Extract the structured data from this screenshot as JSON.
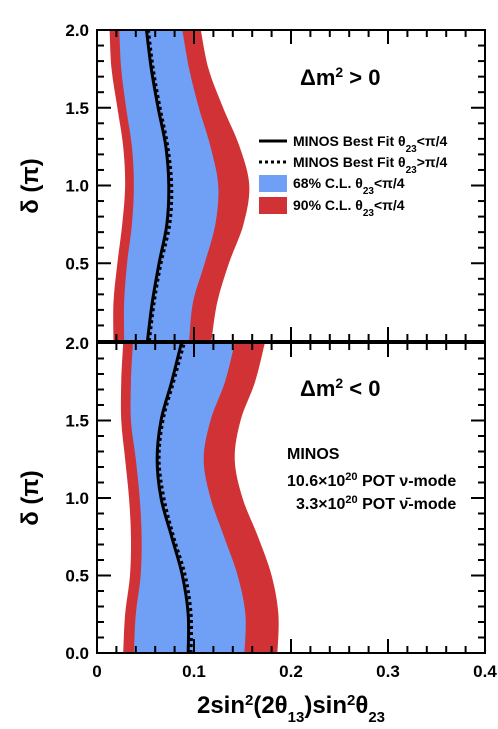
{
  "chart_data": [
    {
      "type": "area",
      "panel": "top",
      "annotation": "Δm² > 0",
      "annotation_parts": {
        "base": "Δm",
        "sup": "2",
        "rest": " > 0"
      },
      "xlabel": "2sin²(2θ13)sin²θ23",
      "ylabel": "δ (π)",
      "xlim": [
        0,
        0.4
      ],
      "ylim": [
        0,
        2.0
      ],
      "x_ticks": [
        "0",
        "0.1",
        "0.2",
        "0.3",
        "0.4"
      ],
      "y_ticks": [
        "0.5",
        "1.0",
        "1.5",
        "2.0"
      ],
      "legend_position": "right-middle",
      "legend": [
        {
          "label": "MINOS Best Fit θ23<π/4",
          "base": "MINOS Best Fit θ",
          "sub": "23",
          "rest": "<π/4",
          "style": "solid-line"
        },
        {
          "label": "MINOS Best Fit θ23>π/4",
          "base": "MINOS Best Fit θ",
          "sub": "23",
          "rest": ">π/4",
          "style": "dotted-line"
        },
        {
          "label": "68% C.L. θ23<π/4",
          "base": "68% C.L. θ",
          "sub": "23",
          "rest": "<π/4",
          "style": "fill-blue"
        },
        {
          "label": "90% C.L. θ23<π/4",
          "base": "90% C.L. θ",
          "sub": "23",
          "rest": "<π/4",
          "style": "fill-red"
        }
      ],
      "colors": {
        "cl90": "#d03236",
        "cl68": "#6fa0f5",
        "line": "#000000"
      },
      "delta": [
        0.0,
        0.25,
        0.5,
        0.75,
        1.0,
        1.25,
        1.5,
        1.75,
        2.0
      ],
      "series": [
        {
          "name": "90% C.L. θ23<π/4",
          "kind": "band",
          "x_low": [
            0.017,
            0.017,
            0.021,
            0.026,
            0.029,
            0.027,
            0.021,
            0.015,
            0.013
          ],
          "x_high": [
            0.118,
            0.124,
            0.136,
            0.151,
            0.157,
            0.147,
            0.13,
            0.115,
            0.107
          ]
        },
        {
          "name": "68% C.L. θ23<π/4",
          "kind": "band",
          "x_low": [
            0.028,
            0.028,
            0.031,
            0.036,
            0.038,
            0.036,
            0.03,
            0.025,
            0.023
          ],
          "x_high": [
            0.095,
            0.099,
            0.111,
            0.122,
            0.125,
            0.117,
            0.105,
            0.095,
            0.088
          ]
        },
        {
          "name": "MINOS Best Fit θ23<π/4",
          "kind": "line",
          "x": [
            0.052,
            0.057,
            0.064,
            0.072,
            0.074,
            0.071,
            0.063,
            0.056,
            0.051
          ]
        },
        {
          "name": "MINOS Best Fit θ23>π/4",
          "kind": "dotted",
          "x": [
            0.054,
            0.059,
            0.066,
            0.075,
            0.077,
            0.073,
            0.065,
            0.058,
            0.053
          ]
        }
      ]
    },
    {
      "type": "area",
      "panel": "bottom",
      "annotation": "Δm² < 0",
      "annotation_parts": {
        "base": "Δm",
        "sup": "2",
        "rest": " < 0"
      },
      "xlabel": "2sin²(2θ13)sin²θ23",
      "xlabel_parts": {
        "a": "2sin",
        "a_sup": "2",
        "b": "(2θ",
        "b_sub": "13",
        "c": ")sin",
        "c_sup": "2",
        "d": "θ",
        "d_sub": "23"
      },
      "ylabel": "δ (π)",
      "xlim": [
        0,
        0.4
      ],
      "ylim": [
        0,
        2.0
      ],
      "x_ticks": [
        "0",
        "0.1",
        "0.2",
        "0.3",
        "0.4"
      ],
      "y_ticks": [
        "0.0",
        "0.5",
        "1.0",
        "1.5",
        "2.0"
      ],
      "text_block": [
        {
          "label": "MINOS",
          "base": "MINOS"
        },
        {
          "label": "10.6×10^20 POT ν-mode",
          "base": "10.6×10",
          "sup": "20",
          "rest": " POT ν-mode"
        },
        {
          "label": "3.3×10^20 POT ν̄-mode",
          "base": "3.3×10",
          "sup": "20",
          "rest": " POT ν̄-mode"
        }
      ],
      "colors": {
        "cl90": "#d03236",
        "cl68": "#6fa0f5",
        "line": "#000000"
      },
      "delta": [
        0.0,
        0.25,
        0.5,
        0.75,
        1.0,
        1.25,
        1.5,
        1.75,
        2.0
      ],
      "series": [
        {
          "name": "90% C.L. θ23<π/4",
          "kind": "band",
          "x_low": [
            0.027,
            0.029,
            0.034,
            0.035,
            0.033,
            0.029,
            0.025,
            0.025,
            0.027
          ],
          "x_high": [
            0.186,
            0.187,
            0.18,
            0.166,
            0.15,
            0.142,
            0.148,
            0.163,
            0.173
          ]
        },
        {
          "name": "68% C.L. θ23<π/4",
          "kind": "band",
          "x_low": [
            0.038,
            0.04,
            0.045,
            0.046,
            0.044,
            0.04,
            0.035,
            0.035,
            0.037
          ],
          "x_high": [
            0.152,
            0.153,
            0.145,
            0.131,
            0.117,
            0.11,
            0.117,
            0.132,
            0.142
          ]
        },
        {
          "name": "MINOS Best Fit θ23<π/4",
          "kind": "line",
          "x": [
            0.094,
            0.094,
            0.088,
            0.077,
            0.066,
            0.062,
            0.066,
            0.077,
            0.087
          ]
        },
        {
          "name": "MINOS Best Fit θ23>π/4",
          "kind": "dotted",
          "x": [
            0.097,
            0.097,
            0.091,
            0.079,
            0.069,
            0.064,
            0.068,
            0.079,
            0.09
          ]
        }
      ]
    }
  ]
}
